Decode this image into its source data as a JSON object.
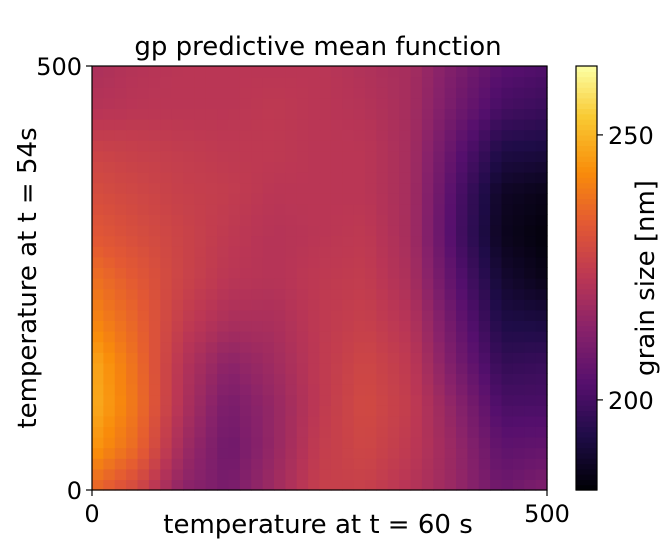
{
  "chart_data": {
    "type": "heatmap",
    "title": "gp predictive mean function",
    "xlabel": "temperature at t = 60 s",
    "ylabel": "temperature at t = 54s",
    "xlim": [
      0,
      500
    ],
    "ylim": [
      0,
      500
    ],
    "x_ticks": [
      {
        "value": 0,
        "label": "0"
      },
      {
        "value": 500,
        "label": "500"
      }
    ],
    "y_ticks": [
      {
        "value": 0,
        "label": "0"
      },
      {
        "value": 500,
        "label": "500"
      }
    ],
    "colormap": "inferno",
    "colorbar": {
      "label": "grain size [nm]",
      "range": [
        183,
        263
      ],
      "ticks": [
        {
          "value": 200,
          "label": "200"
        },
        {
          "value": 250,
          "label": "250"
        }
      ]
    },
    "grid": false,
    "x": [
      0,
      50,
      100,
      150,
      200,
      250,
      300,
      350,
      400,
      450,
      500
    ],
    "y": [
      0,
      50,
      100,
      150,
      200,
      250,
      300,
      350,
      400,
      450,
      500
    ],
    "z": [
      [
        236,
        228,
        214,
        210,
        218,
        226,
        226,
        222,
        216,
        208,
        212
      ],
      [
        245,
        236,
        218,
        208,
        216,
        225,
        228,
        224,
        216,
        205,
        206
      ],
      [
        249,
        238,
        221,
        210,
        216,
        224,
        229,
        225,
        214,
        201,
        201
      ],
      [
        248,
        237,
        222,
        214,
        218,
        224,
        228,
        224,
        210,
        197,
        198
      ],
      [
        242,
        235,
        225,
        220,
        220,
        224,
        226,
        222,
        207,
        193,
        192
      ],
      [
        238,
        233,
        227,
        223,
        222,
        224,
        225,
        220,
        204,
        190,
        186
      ],
      [
        233,
        230,
        227,
        224,
        222,
        223,
        224,
        219,
        201,
        187,
        184
      ],
      [
        230,
        228,
        226,
        225,
        223,
        223,
        223,
        219,
        202,
        188,
        186
      ],
      [
        227,
        226,
        225,
        224,
        224,
        223,
        223,
        219,
        205,
        193,
        192
      ],
      [
        222,
        223,
        223,
        223,
        224,
        223,
        222,
        219,
        209,
        200,
        198
      ],
      [
        220,
        222,
        223,
        223,
        223,
        223,
        221,
        219,
        211,
        204,
        202
      ]
    ]
  }
}
